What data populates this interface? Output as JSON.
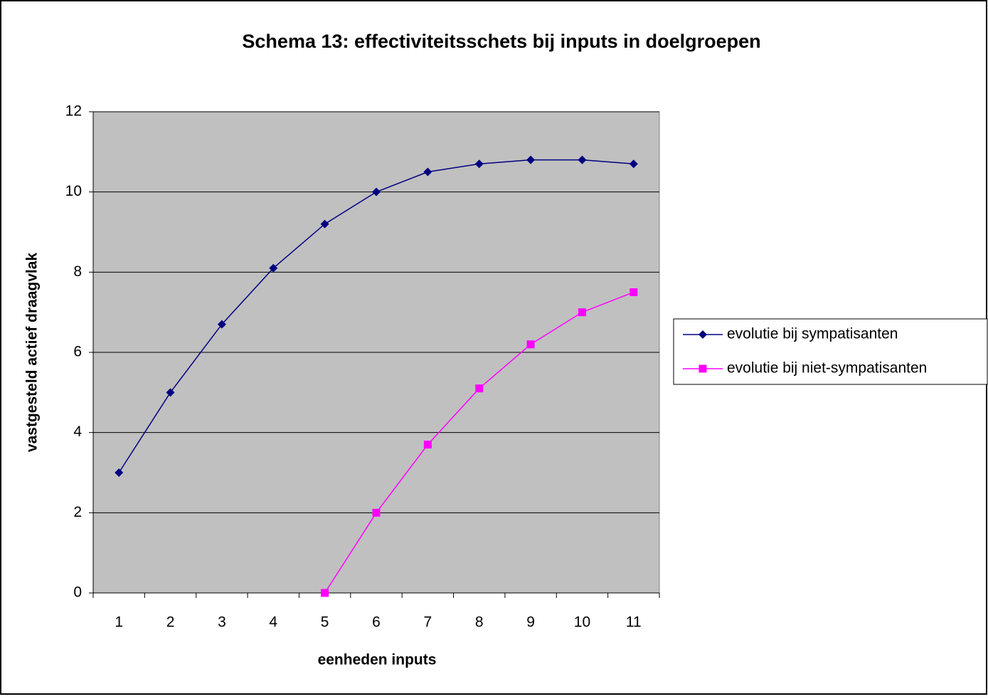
{
  "chart_data": {
    "type": "line",
    "title": "Schema 13: effectiviteitsschets bij inputs in doelgroepen",
    "x_label": "eenheden inputs",
    "y_label": "vastgesteld actief draagvlak",
    "categories": [
      "1",
      "2",
      "3",
      "4",
      "5",
      "6",
      "7",
      "8",
      "9",
      "10",
      "11"
    ],
    "series": [
      {
        "name": "evolutie bij sympatisanten",
        "color": "#000080",
        "marker": "diamond",
        "values": [
          3,
          5,
          6.7,
          8.1,
          9.2,
          10,
          10.5,
          10.7,
          10.8,
          10.8,
          10.7
        ]
      },
      {
        "name": "evolutie bij niet-sympatisanten",
        "color": "#ff00ff",
        "marker": "square",
        "values": [
          null,
          null,
          null,
          null,
          0,
          2,
          3.7,
          5.1,
          6.2,
          7,
          7.5
        ]
      }
    ],
    "ylim": [
      0,
      12
    ],
    "yticks": [
      0,
      2,
      4,
      6,
      8,
      10,
      12
    ],
    "grid": true,
    "legend": "right"
  }
}
